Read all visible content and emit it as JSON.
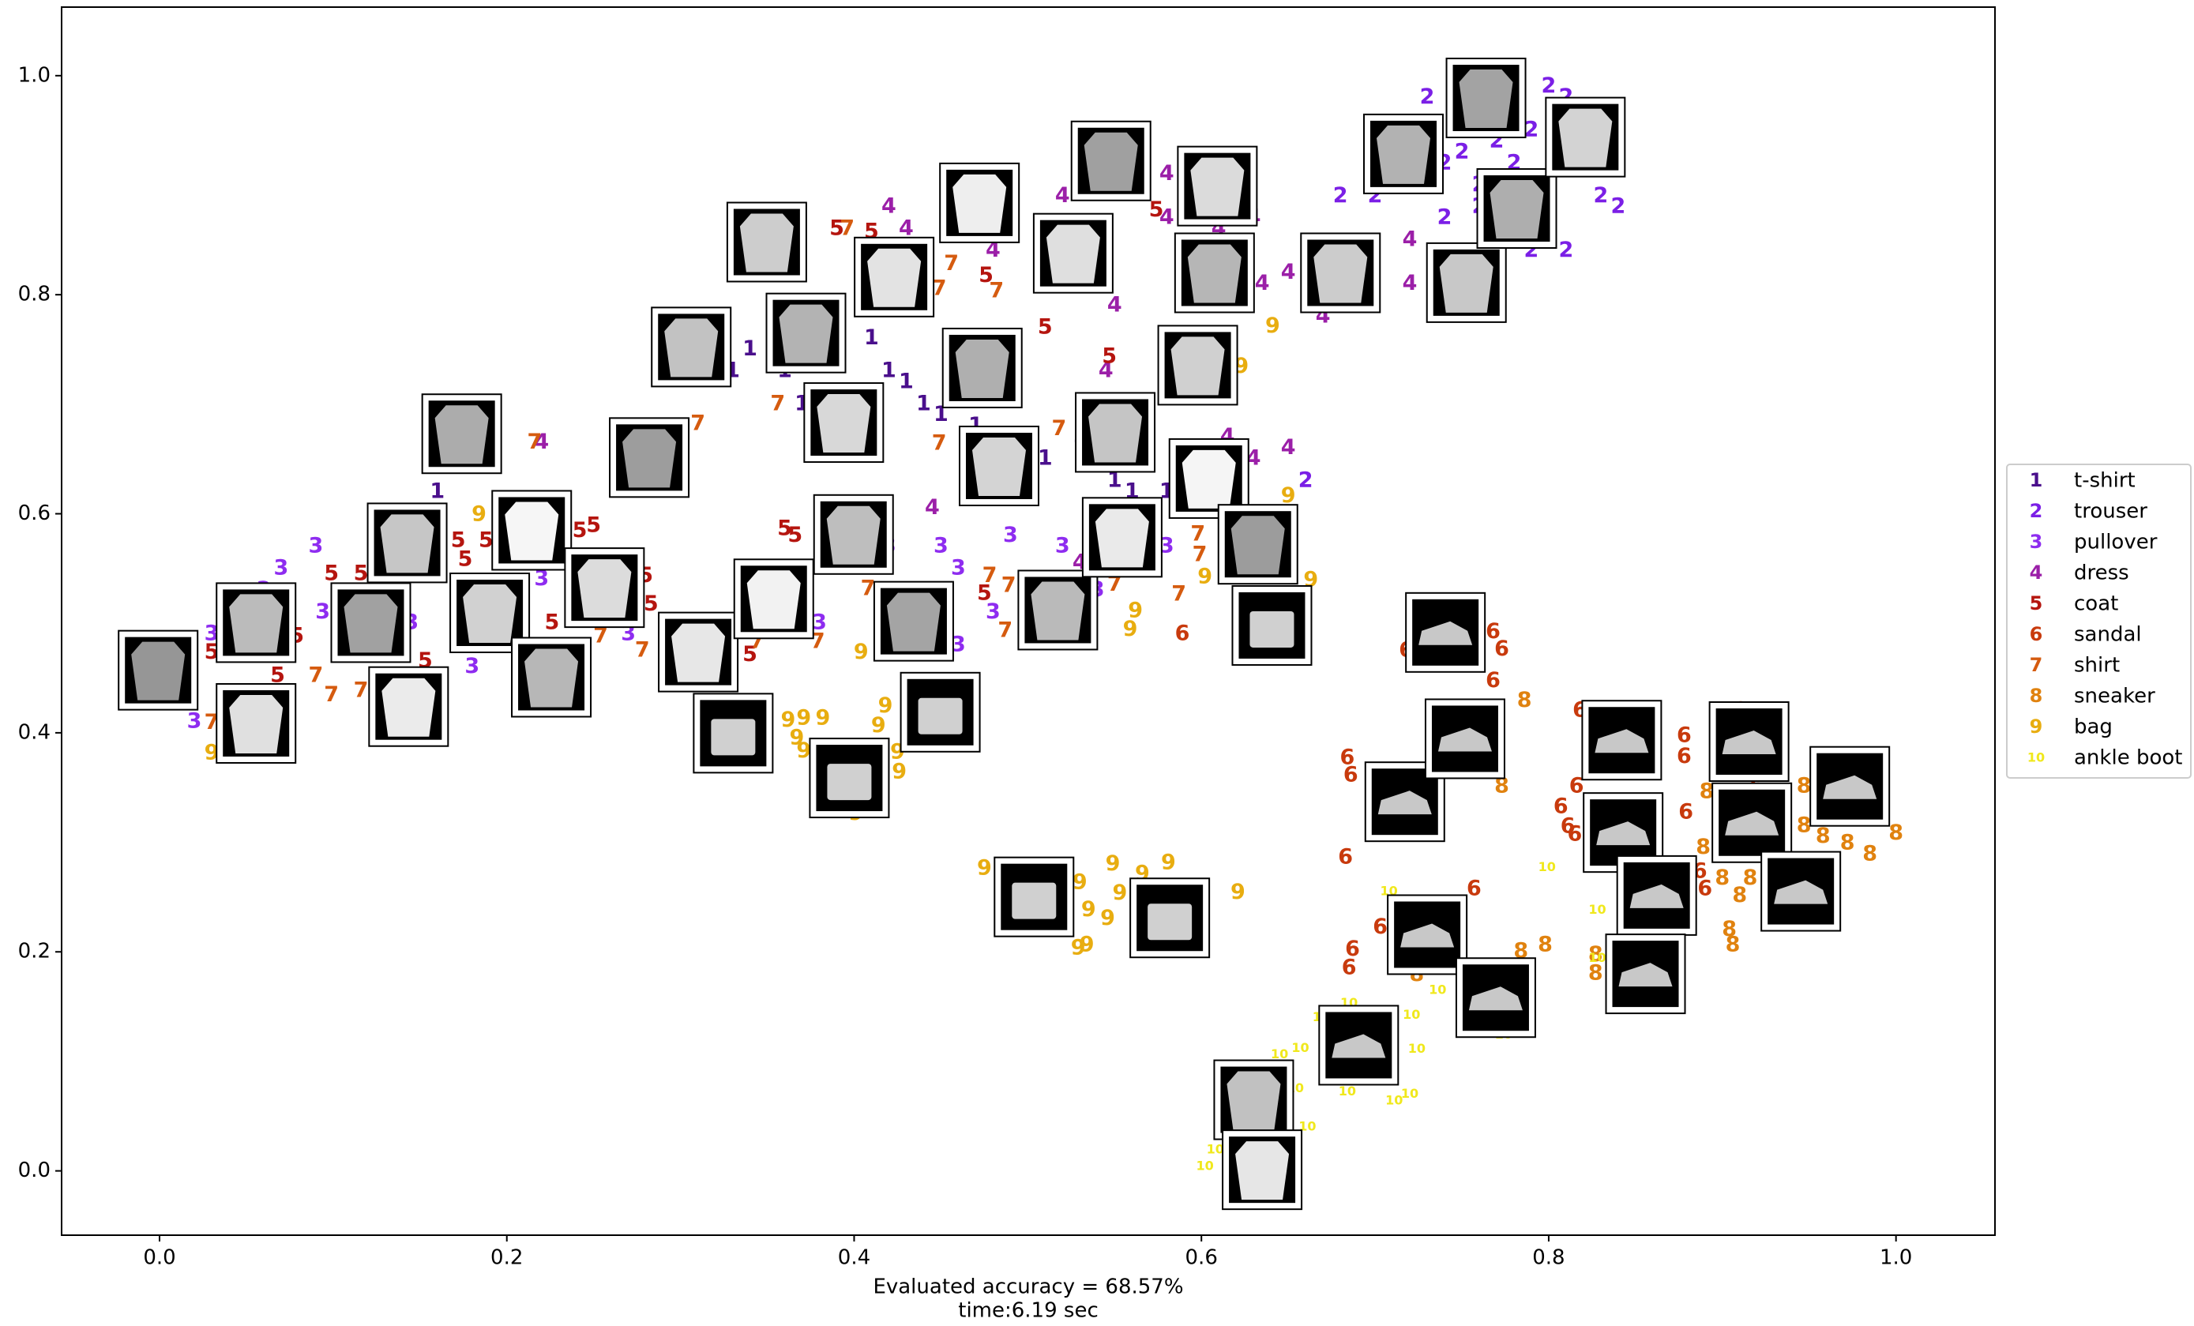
{
  "chart_data": {
    "type": "scatter",
    "xlabel_lines": [
      "Evaluated accuracy = 68.57%",
      "time:6.19 sec"
    ],
    "xlim": [
      -0.0564,
      1.057
    ],
    "ylim": [
      -0.0587,
      1.0626
    ],
    "xticks": [
      {
        "value": 0,
        "label": "0.0"
      },
      0.2,
      0.4,
      0.6,
      0.8,
      {
        "value": 1,
        "label": "1.0"
      }
    ],
    "yticks": [
      {
        "value": 0,
        "label": "0.0"
      },
      0.2,
      0.4,
      0.6,
      0.8,
      {
        "value": 1,
        "label": "1.0"
      }
    ],
    "legend": "outside right",
    "grid": false,
    "series": [
      {
        "name": "t-shirt",
        "marker": "1",
        "color": "#4a0f8c",
        "x": [
          0.34,
          0.36,
          0.38,
          0.41,
          0.42,
          0.43,
          0.44,
          0.45,
          0.47,
          0.4,
          0.37,
          0.33,
          0.51,
          0.53,
          0.55,
          0.56,
          0.58,
          0.55,
          0.16
        ],
        "y": [
          0.75,
          0.73,
          0.71,
          0.76,
          0.73,
          0.72,
          0.7,
          0.69,
          0.68,
          0.69,
          0.7,
          0.73,
          0.65,
          0.66,
          0.63,
          0.62,
          0.62,
          0.66,
          0.62
        ]
      },
      {
        "name": "trouser",
        "marker": "2",
        "color": "#7b1fe6",
        "x": [
          0.7,
          0.72,
          0.73,
          0.74,
          0.75,
          0.76,
          0.77,
          0.78,
          0.79,
          0.8,
          0.81,
          0.82,
          0.83,
          0.84,
          0.81,
          0.79,
          0.74,
          0.76,
          0.66,
          0.68
        ],
        "y": [
          0.89,
          0.95,
          0.98,
          0.92,
          0.93,
          0.9,
          0.94,
          0.92,
          0.95,
          0.99,
          0.98,
          0.97,
          0.89,
          0.88,
          0.84,
          0.84,
          0.87,
          0.88,
          0.63,
          0.89
        ]
      },
      {
        "name": "pullover",
        "marker": "3",
        "color": "#8e2cf0",
        "x": [
          0.03,
          0.02,
          0.07,
          0.09,
          0.094,
          0.065,
          0.18,
          0.145,
          0.22,
          0.27,
          0.38,
          0.42,
          0.45,
          0.46,
          0.46,
          0.48,
          0.49,
          0.52,
          0.54,
          0.58,
          0.06
        ],
        "y": [
          0.49,
          0.41,
          0.55,
          0.57,
          0.51,
          0.47,
          0.46,
          0.5,
          0.54,
          0.49,
          0.5,
          0.57,
          0.57,
          0.55,
          0.48,
          0.51,
          0.58,
          0.57,
          0.53,
          0.57,
          0.53
        ]
      },
      {
        "name": "dress",
        "marker": "4",
        "color": "#9b1fa8",
        "x": [
          0.42,
          0.43,
          0.48,
          0.52,
          0.55,
          0.58,
          0.58,
          0.61,
          0.63,
          0.65,
          0.67,
          0.72,
          0.72,
          0.635,
          0.615,
          0.63,
          0.65,
          0.545,
          0.445,
          0.53,
          0.22
        ],
        "y": [
          0.88,
          0.86,
          0.84,
          0.89,
          0.79,
          0.91,
          0.87,
          0.86,
          0.87,
          0.82,
          0.78,
          0.85,
          0.81,
          0.81,
          0.67,
          0.65,
          0.66,
          0.73,
          0.605,
          0.555,
          0.665
        ]
      },
      {
        "name": "coat",
        "marker": "5",
        "color": "#b5150f",
        "x": [
          0.39,
          0.41,
          0.476,
          0.51,
          0.547,
          0.574,
          0.36,
          0.366,
          0.099,
          0.116,
          0.172,
          0.176,
          0.188,
          0.242,
          0.25,
          0.28,
          0.283,
          0.226,
          0.03,
          0.079,
          0.34,
          0.153,
          0.068,
          0.475
        ],
        "y": [
          0.86,
          0.857,
          0.817,
          0.77,
          0.743,
          0.877,
          0.586,
          0.58,
          0.545,
          0.545,
          0.575,
          0.558,
          0.575,
          0.584,
          0.589,
          0.543,
          0.517,
          0.5,
          0.473,
          0.488,
          0.471,
          0.465,
          0.452,
          0.527
        ]
      },
      {
        "name": "sandal",
        "marker": "6",
        "color": "#c83a0d",
        "x": [
          0.589,
          0.718,
          0.768,
          0.773,
          0.768,
          0.684,
          0.686,
          0.683,
          0.687,
          0.685,
          0.703,
          0.757,
          0.818,
          0.807,
          0.811,
          0.815,
          0.816,
          0.878,
          0.878,
          0.879,
          0.91,
          0.887,
          0.89,
          0.92
        ],
        "y": [
          0.49,
          0.475,
          0.492,
          0.476,
          0.447,
          0.377,
          0.361,
          0.286,
          0.202,
          0.185,
          0.222,
          0.257,
          0.42,
          0.332,
          0.314,
          0.307,
          0.351,
          0.397,
          0.378,
          0.327,
          0.42,
          0.273,
          0.257,
          0.351
        ]
      },
      {
        "name": "shirt",
        "marker": "7",
        "color": "#d55b0f",
        "x": [
          0.396,
          0.456,
          0.482,
          0.449,
          0.31,
          0.356,
          0.449,
          0.518,
          0.216,
          0.254,
          0.278,
          0.379,
          0.408,
          0.478,
          0.489,
          0.487,
          0.55,
          0.587,
          0.598,
          0.599,
          0.099,
          0.116,
          0.09,
          0.344,
          0.03
        ],
        "y": [
          0.86,
          0.828,
          0.803,
          0.805,
          0.682,
          0.7,
          0.664,
          0.677,
          0.665,
          0.488,
          0.475,
          0.483,
          0.531,
          0.543,
          0.534,
          0.493,
          0.535,
          0.526,
          0.581,
          0.562,
          0.434,
          0.438,
          0.452,
          0.483,
          0.409
        ]
      },
      {
        "name": "sneaker",
        "marker": "8",
        "color": "#e0820f",
        "x": [
          0.786,
          0.773,
          0.784,
          0.798,
          0.827,
          0.827,
          0.891,
          0.889,
          0.9,
          0.906,
          0.91,
          0.916,
          0.947,
          0.947,
          0.958,
          0.972,
          0.985,
          1.0,
          0.904,
          0.724
        ],
        "y": [
          0.429,
          0.351,
          0.2,
          0.206,
          0.18,
          0.197,
          0.346,
          0.295,
          0.267,
          0.206,
          0.251,
          0.267,
          0.351,
          0.315,
          0.305,
          0.299,
          0.289,
          0.308,
          0.22,
          0.179
        ]
      },
      {
        "name": "bag",
        "marker": "9",
        "color": "#e8ad10",
        "x": [
          0.184,
          0.03,
          0.362,
          0.371,
          0.382,
          0.367,
          0.371,
          0.414,
          0.418,
          0.425,
          0.426,
          0.404,
          0.401,
          0.475,
          0.53,
          0.535,
          0.546,
          0.529,
          0.534,
          0.549,
          0.553,
          0.566,
          0.581,
          0.621,
          0.559,
          0.562,
          0.602,
          0.663,
          0.65,
          0.641,
          0.623
        ],
        "y": [
          0.599,
          0.381,
          0.411,
          0.413,
          0.413,
          0.395,
          0.383,
          0.406,
          0.424,
          0.382,
          0.364,
          0.473,
          0.326,
          0.276,
          0.263,
          0.238,
          0.23,
          0.203,
          0.206,
          0.28,
          0.253,
          0.271,
          0.281,
          0.254,
          0.494,
          0.511,
          0.542,
          0.539,
          0.616,
          0.771,
          0.734
        ]
      },
      {
        "name": "ankle boot",
        "marker": "10",
        "color": "#f0e81c",
        "x": [
          0.799,
          0.708,
          0.828,
          0.828,
          0.736,
          0.721,
          0.724,
          0.685,
          0.669,
          0.645,
          0.657,
          0.654,
          0.661,
          0.608,
          0.602,
          0.684,
          0.711,
          0.72,
          0.774,
          0.738
        ],
        "y": [
          0.277,
          0.255,
          0.238,
          0.194,
          0.165,
          0.142,
          0.111,
          0.153,
          0.14,
          0.106,
          0.112,
          0.075,
          0.04,
          0.019,
          0.004,
          0.072,
          0.064,
          0.07,
          0.124,
          0.188
        ]
      }
    ]
  }
}
